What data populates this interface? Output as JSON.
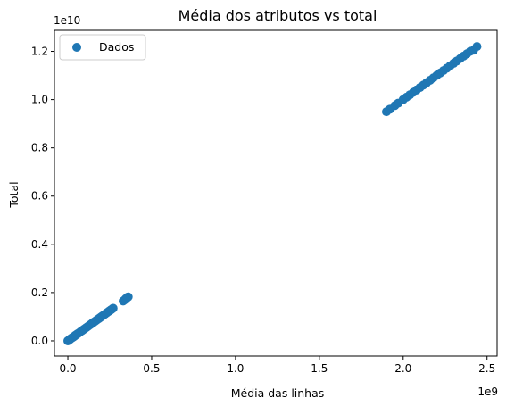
{
  "chart_data": {
    "type": "scatter",
    "title": "Média dos atributos vs total",
    "xlabel": "Média das linhas",
    "ylabel": "Total",
    "x_offset_label": "1e9",
    "y_offset_label": "1e10",
    "xlim": [
      -80000000,
      2560000000
    ],
    "ylim": [
      -630000000,
      12870000000
    ],
    "x_ticks": [
      0,
      500000000,
      1000000000,
      1500000000,
      2000000000,
      2500000000
    ],
    "x_tick_labels": [
      "0.0",
      "0.5",
      "1.0",
      "1.5",
      "2.0",
      "2.5"
    ],
    "y_ticks": [
      0,
      2000000000,
      4000000000,
      6000000000,
      8000000000,
      10000000000,
      12000000000
    ],
    "y_tick_labels": [
      "0.0",
      "0.2",
      "0.4",
      "0.6",
      "0.8",
      "1.0",
      "1.2"
    ],
    "grid": false,
    "legend_position": "top-left",
    "series": [
      {
        "name": "Dados",
        "color": "#1f77b4",
        "marker": "circle",
        "points": [
          [
            0,
            0
          ],
          [
            10000000,
            50000000
          ],
          [
            20000000,
            100000000
          ],
          [
            30000000,
            150000000
          ],
          [
            40000000,
            200000000
          ],
          [
            50000000,
            250000000
          ],
          [
            60000000,
            300000000
          ],
          [
            70000000,
            350000000
          ],
          [
            80000000,
            400000000
          ],
          [
            90000000,
            450000000
          ],
          [
            100000000,
            500000000
          ],
          [
            110000000,
            550000000
          ],
          [
            120000000,
            600000000
          ],
          [
            130000000,
            650000000
          ],
          [
            140000000,
            700000000
          ],
          [
            150000000,
            750000000
          ],
          [
            160000000,
            800000000
          ],
          [
            170000000,
            850000000
          ],
          [
            180000000,
            900000000
          ],
          [
            190000000,
            950000000
          ],
          [
            200000000,
            1000000000
          ],
          [
            210000000,
            1050000000
          ],
          [
            220000000,
            1100000000
          ],
          [
            230000000,
            1150000000
          ],
          [
            240000000,
            1200000000
          ],
          [
            250000000,
            1250000000
          ],
          [
            260000000,
            1300000000
          ],
          [
            270000000,
            1350000000
          ],
          [
            5000000,
            20000000
          ],
          [
            15000000,
            80000000
          ],
          [
            25000000,
            130000000
          ],
          [
            35000000,
            170000000
          ],
          [
            45000000,
            230000000
          ],
          [
            55000000,
            280000000
          ],
          [
            330000000,
            1650000000
          ],
          [
            340000000,
            1700000000
          ],
          [
            345000000,
            1740000000
          ],
          [
            350000000,
            1770000000
          ],
          [
            355000000,
            1800000000
          ],
          [
            360000000,
            1820000000
          ],
          [
            1900000000,
            9500000000
          ],
          [
            1920000000,
            9600000000
          ],
          [
            1950000000,
            9750000000
          ],
          [
            1970000000,
            9850000000
          ],
          [
            2000000000,
            10000000000
          ],
          [
            2020000000,
            10100000000
          ],
          [
            2040000000,
            10200000000
          ],
          [
            2060000000,
            10300000000
          ],
          [
            2080000000,
            10400000000
          ],
          [
            2100000000,
            10500000000
          ],
          [
            2120000000,
            10600000000
          ],
          [
            2140000000,
            10700000000
          ],
          [
            2160000000,
            10800000000
          ],
          [
            2180000000,
            10900000000
          ],
          [
            2200000000,
            11000000000
          ],
          [
            2220000000,
            11100000000
          ],
          [
            2240000000,
            11200000000
          ],
          [
            2260000000,
            11300000000
          ],
          [
            2280000000,
            11400000000
          ],
          [
            2300000000,
            11500000000
          ],
          [
            2320000000,
            11600000000
          ],
          [
            2340000000,
            11700000000
          ],
          [
            2360000000,
            11800000000
          ],
          [
            2380000000,
            11900000000
          ],
          [
            2400000000,
            12000000000
          ],
          [
            2420000000,
            12050000000
          ],
          [
            2440000000,
            12200000000
          ]
        ]
      }
    ]
  }
}
